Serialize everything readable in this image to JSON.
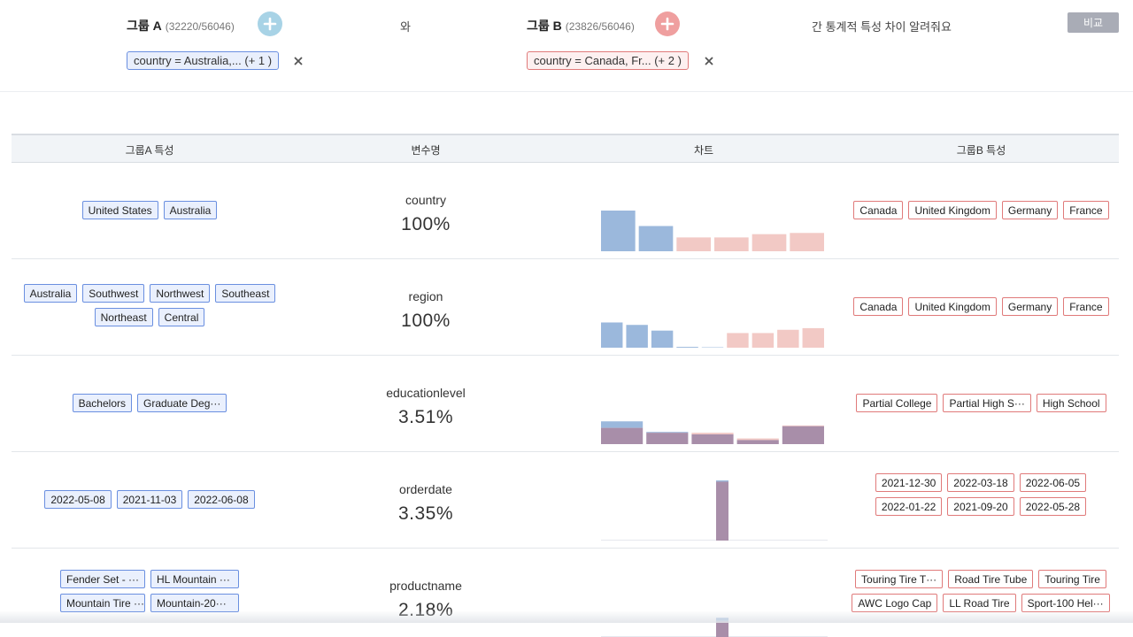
{
  "header": {
    "group_a": {
      "label": "그룹 A",
      "count": "(32220/56046)",
      "filter": "country = Australia,... (+ 1 )"
    },
    "connector": "와",
    "group_b": {
      "label": "그룹 B",
      "count": "(23826/56046)",
      "filter": "country = Canada, Fr... (+ 2 )"
    },
    "question": "간 통계적 특성 차이 알려줘요",
    "compare_button": "비교"
  },
  "table": {
    "columns": {
      "group_a": "그룹A 특성",
      "variable": "변수명",
      "chart": "차트",
      "group_b": "그룹B 특성"
    },
    "rows": [
      {
        "variable": "country",
        "percent": "100%",
        "group_a_tags": [
          "United States",
          "Australia"
        ],
        "group_b_tags": [
          "Canada",
          "United Kingdom",
          "Germany",
          "France"
        ],
        "chart": {
          "series_a": [
            1.0,
            0.62,
            0,
            0,
            0,
            0
          ],
          "series_b": [
            0,
            0,
            0.34,
            0.34,
            0.42,
            0.45
          ]
        }
      },
      {
        "variable": "region",
        "percent": "100%",
        "group_a_tags": [
          "Australia",
          "Southwest",
          "Northwest",
          "Southeast",
          "Northeast",
          "Central"
        ],
        "group_b_tags": [
          "Canada",
          "United Kingdom",
          "Germany",
          "France"
        ],
        "chart": {
          "series_a": [
            0.62,
            0.56,
            0.42,
            0.02,
            0.01,
            0,
            0,
            0,
            0
          ],
          "series_b": [
            0,
            0,
            0,
            0,
            0,
            0.36,
            0.36,
            0.44,
            0.48
          ]
        }
      },
      {
        "variable": "educationlevel",
        "percent": "3.51%",
        "group_a_tags": [
          "Bachelors",
          "Graduate Deg···"
        ],
        "group_b_tags": [
          "Partial College",
          "Partial High S···",
          "High School"
        ],
        "chart": {
          "series_a": [
            0.56,
            0.3,
            0.24,
            0.1,
            0.44
          ],
          "series_b": [
            0.4,
            0.28,
            0.28,
            0.14,
            0.46
          ]
        }
      },
      {
        "variable": "orderdate",
        "percent": "3.35%",
        "group_a_tags": [
          "2022-05-08",
          "2021-11-03",
          "2022-06-08"
        ],
        "group_b_tags": [
          "2021-12-30",
          "2022-03-18",
          "2022-06-05",
          "2022-01-22",
          "2021-09-20",
          "2022-05-28"
        ],
        "chart": {
          "spike": 0.98
        }
      },
      {
        "variable": "productname",
        "percent": "2.18%",
        "group_a_tags": [
          "Fender Set - ···",
          "HL Mountain ···",
          "Mountain Tire ···",
          "Mountain-20···"
        ],
        "group_b_tags": [
          "Touring Tire T···",
          "Road Tire Tube",
          "Touring Tire",
          "AWC Logo Cap",
          "LL Road Tire",
          "Sport-100 Hel···"
        ],
        "chart": {
          "spike": 0.3
        }
      }
    ]
  },
  "colors": {
    "group_a": "#9bb8dc",
    "group_b": "#f2c9c5",
    "overlap": "#a88ea9",
    "compare_button": "#a9acb6"
  },
  "icons": {
    "add_a": "plus-icon",
    "add_b": "plus-icon",
    "remove": "close-icon"
  }
}
